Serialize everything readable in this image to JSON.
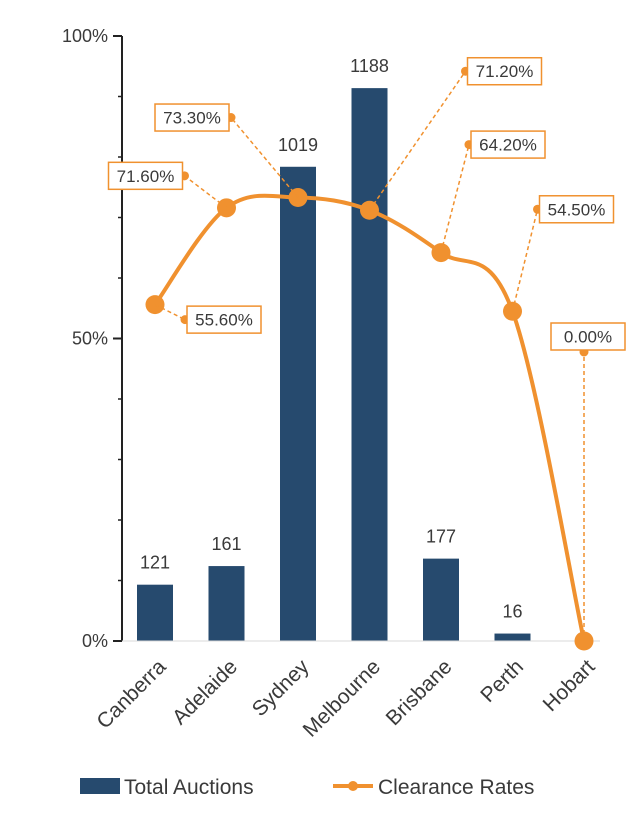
{
  "chart_data": {
    "type": "bar+line",
    "categories": [
      "Canberra",
      "Adelaide",
      "Sydney",
      "Melbourne",
      "Brisbane",
      "Perth",
      "Hobart"
    ],
    "series": [
      {
        "name": "Total Auctions",
        "type": "bar",
        "axis": "secondary",
        "values": [
          121,
          161,
          1019,
          1188,
          177,
          16,
          0
        ],
        "value_labels": [
          "121",
          "161",
          "1019",
          "1188",
          "177",
          "16",
          ""
        ],
        "color": "#264a6e"
      },
      {
        "name": "Clearance Rates",
        "type": "line",
        "axis": "primary",
        "values": [
          55.6,
          71.6,
          73.3,
          71.2,
          64.2,
          54.5,
          0.0
        ],
        "value_labels": [
          "55.60%",
          "71.60%",
          "73.30%",
          "71.20%",
          "64.20%",
          "54.50%",
          "0.00%"
        ],
        "color": "#f0912f"
      }
    ],
    "y_axis": {
      "range": [
        0,
        100
      ],
      "ticks": [
        0,
        50,
        100
      ],
      "tick_labels": [
        "0%",
        "50%",
        "100%"
      ],
      "minor_ticks": [
        10,
        20,
        30,
        40,
        60,
        70,
        80,
        90
      ]
    },
    "secondary_range": [
      0,
      1300
    ],
    "grid": false,
    "legend": {
      "position": "bottom",
      "entries": [
        "Total Auctions",
        "Clearance Rates"
      ]
    }
  }
}
